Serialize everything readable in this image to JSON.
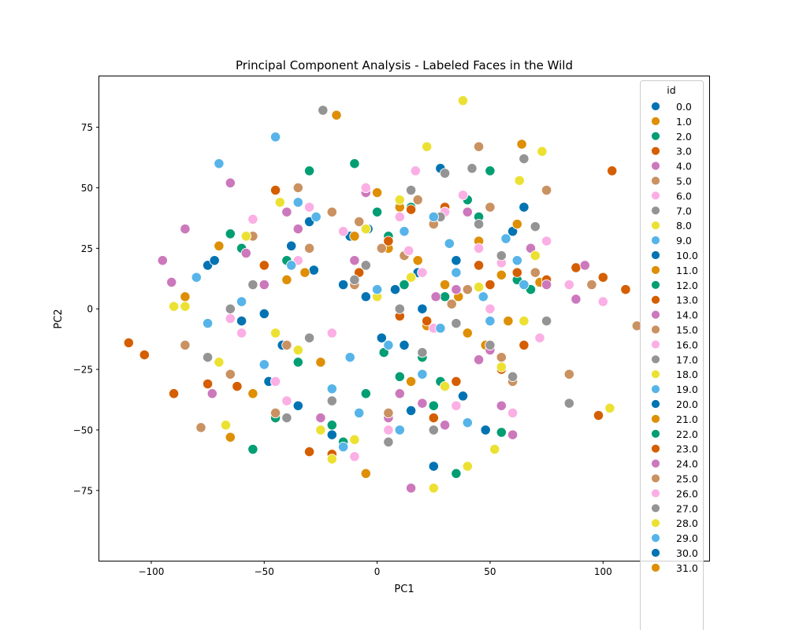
{
  "chart_data": {
    "type": "scatter",
    "title": "Principal Component Analysis - Labeled Faces in the Wild",
    "xlabel": "PC1",
    "ylabel": "PC2",
    "xlim": [
      -123,
      147
    ],
    "ylim": [
      -104,
      96
    ],
    "xticks": [
      -100,
      -50,
      0,
      50,
      100
    ],
    "yticks": [
      -75,
      -50,
      -25,
      0,
      25,
      50,
      75
    ],
    "grid": false,
    "legend": {
      "title": "id",
      "placement": "right, overflowing bottom",
      "entries": [
        "0.0",
        "1.0",
        "2.0",
        "3.0",
        "4.0",
        "5.0",
        "6.0",
        "7.0",
        "8.0",
        "9.0",
        "10.0",
        "11.0",
        "12.0",
        "13.0",
        "14.0",
        "15.0",
        "16.0",
        "17.0",
        "18.0",
        "19.0",
        "20.0",
        "21.0",
        "22.0",
        "23.0",
        "24.0",
        "25.0",
        "26.0",
        "27.0",
        "28.0",
        "29.0",
        "30.0",
        "31.0"
      ]
    },
    "palette": [
      "#0173b2",
      "#de8f05",
      "#029e73",
      "#d55e00",
      "#cc78bc",
      "#ca9161",
      "#fbafe4",
      "#949494",
      "#ece133",
      "#56b4e9"
    ],
    "series": [
      {
        "id": 0,
        "x": [
          -75,
          -72,
          -42,
          -28,
          -12,
          -4,
          8,
          18,
          28,
          45,
          -60,
          -35,
          5,
          15,
          -20,
          38,
          -50,
          25,
          -5,
          60,
          -48,
          12,
          -30,
          35,
          65,
          -15,
          2,
          48,
          20,
          -38
        ],
        "y": [
          18,
          20,
          -15,
          16,
          30,
          33,
          8,
          15,
          58,
          18,
          -5,
          -40,
          -44,
          -42,
          -52,
          -36,
          -2,
          -65,
          5,
          32,
          -30,
          -15,
          36,
          20,
          42,
          10,
          -12,
          -50,
          0,
          26
        ]
      },
      {
        "id": 1,
        "x": [
          -18,
          38,
          64,
          -85,
          -65,
          -5,
          22,
          55,
          10,
          -40,
          30,
          -25,
          72,
          45,
          0,
          -10,
          58,
          -55,
          15,
          48,
          5,
          -32,
          40,
          26,
          -70,
          18,
          36,
          62
        ],
        "y": [
          80,
          86,
          68,
          5,
          -53,
          -68,
          -7,
          14,
          42,
          12,
          10,
          -22,
          11,
          28,
          48,
          30,
          -5,
          -35,
          -30,
          -15,
          25,
          15,
          -10,
          38,
          26,
          20,
          5,
          35
        ]
      },
      {
        "id": 2,
        "x": [
          -30,
          -60,
          -55,
          15,
          40,
          -10,
          25,
          -40,
          30,
          10,
          50,
          -20,
          0,
          20,
          35,
          -5,
          55,
          -35,
          45,
          68,
          -65,
          5,
          -45,
          28,
          62,
          -15,
          12,
          3
        ],
        "y": [
          57,
          25,
          -58,
          42,
          45,
          60,
          -40,
          20,
          5,
          -28,
          57,
          -48,
          40,
          -20,
          -68,
          -35,
          -51,
          -22,
          38,
          8,
          31,
          30,
          -45,
          -30,
          12,
          -55,
          10,
          -18
        ]
      },
      {
        "id": 3,
        "x": [
          -110,
          -103,
          -90,
          98,
          104,
          110,
          -75,
          -45,
          10,
          25,
          50,
          62,
          75,
          88,
          -62,
          -30,
          35,
          -20,
          65,
          100,
          -50,
          45,
          5,
          22,
          55,
          -8,
          15,
          30
        ],
        "y": [
          -14,
          -19,
          -35,
          -44,
          57,
          8,
          -31,
          49,
          -3,
          -45,
          10,
          15,
          12,
          17,
          -32,
          -59,
          -30,
          -60,
          -15,
          13,
          18,
          18,
          28,
          -5,
          -25,
          15,
          41,
          42
        ]
      },
      {
        "id": 4,
        "x": [
          -95,
          -91,
          -85,
          -65,
          -73,
          -50,
          5,
          30,
          15,
          45,
          60,
          75,
          92,
          -40,
          20,
          -25,
          55,
          68,
          -58,
          35,
          -5,
          50,
          -35,
          10,
          88,
          26,
          -10,
          40
        ],
        "y": [
          20,
          11,
          33,
          52,
          -35,
          10,
          -45,
          -48,
          -74,
          -21,
          -52,
          10,
          18,
          40,
          -39,
          -45,
          -40,
          25,
          23,
          8,
          48,
          -17,
          33,
          -35,
          4,
          5,
          20,
          40
        ]
      },
      {
        "id": 5,
        "x": [
          -78,
          -85,
          -35,
          -45,
          -20,
          45,
          75,
          115,
          85,
          60,
          -55,
          5,
          25,
          12,
          40,
          -10,
          55,
          -30,
          70,
          95,
          33,
          -65,
          18,
          -40,
          50,
          2,
          -8,
          28
        ],
        "y": [
          -49,
          -15,
          50,
          -43,
          40,
          67,
          49,
          -7,
          -27,
          -30,
          30,
          -43,
          35,
          22,
          8,
          10,
          -20,
          25,
          15,
          10,
          2,
          -27,
          45,
          -15,
          42,
          25,
          36,
          -8
        ]
      },
      {
        "id": 6,
        "x": [
          -45,
          -55,
          -60,
          17,
          38,
          75,
          85,
          100,
          -15,
          -10,
          25,
          -30,
          10,
          45,
          60,
          -40,
          5,
          35,
          72,
          -20,
          55,
          -5,
          20,
          -65,
          50,
          30,
          14,
          -35
        ],
        "y": [
          -30,
          37,
          -10,
          57,
          47,
          28,
          10,
          3,
          32,
          -61,
          -8,
          42,
          38,
          25,
          -43,
          -38,
          -50,
          -40,
          -12,
          -10,
          19,
          50,
          15,
          -4,
          0,
          40,
          24,
          20
        ]
      },
      {
        "id": 7,
        "x": [
          -24,
          30,
          42,
          65,
          85,
          50,
          -75,
          -40,
          -10,
          15,
          60,
          75,
          -55,
          5,
          25,
          35,
          -20,
          45,
          -30,
          70,
          10,
          -5,
          55,
          28,
          -65,
          20
        ],
        "y": [
          82,
          56,
          58,
          62,
          -39,
          -15,
          -20,
          -45,
          12,
          49,
          -28,
          -5,
          10,
          -55,
          -50,
          -6,
          -38,
          35,
          -12,
          34,
          0,
          18,
          22,
          38,
          0,
          -18
        ]
      },
      {
        "id": 8,
        "x": [
          -90,
          -85,
          -70,
          -67,
          -58,
          -43,
          -45,
          38,
          73,
          103,
          22,
          25,
          40,
          52,
          63,
          -20,
          -10,
          15,
          -35,
          30,
          55,
          0,
          65,
          10,
          -25,
          45,
          70,
          -5
        ],
        "y": [
          1,
          1,
          -22,
          -48,
          30,
          44,
          -10,
          86,
          65,
          -41,
          67,
          -74,
          -65,
          -58,
          53,
          -62,
          -54,
          13,
          -17,
          -32,
          -24,
          5,
          -5,
          45,
          -50,
          9,
          22,
          33
        ]
      },
      {
        "id": 9,
        "x": [
          -70,
          -80,
          -75,
          -45,
          -35,
          -27,
          -15,
          20,
          28,
          40,
          57,
          65,
          -8,
          10,
          32,
          -50,
          5,
          47,
          -20,
          12,
          35,
          -38,
          50,
          62,
          -60,
          25,
          0,
          -12
        ],
        "y": [
          60,
          13,
          -6,
          71,
          44,
          38,
          -57,
          -27,
          -8,
          -47,
          29,
          10,
          -43,
          -50,
          27,
          -23,
          -15,
          5,
          -33,
          32,
          15,
          18,
          -5,
          20,
          3,
          38,
          8,
          -20
        ]
      }
    ]
  }
}
